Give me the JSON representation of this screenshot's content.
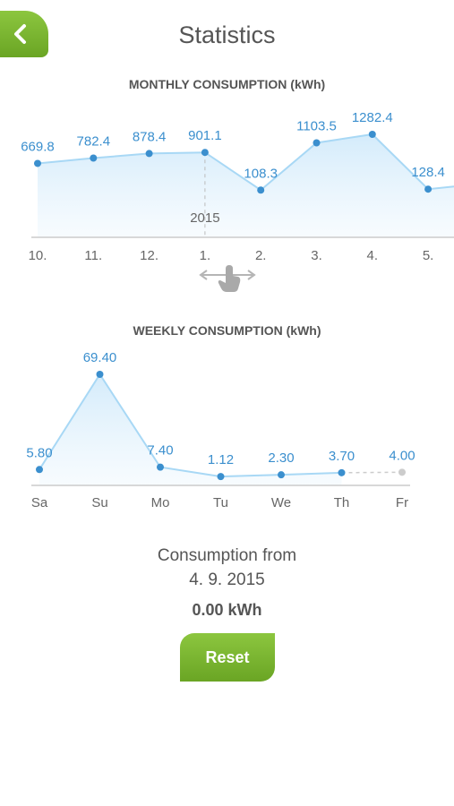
{
  "header": {
    "title": "Statistics"
  },
  "summary": {
    "since_label": "Consumption from",
    "since_date": "4. 9. 2015",
    "total": "0.00  kWh",
    "reset_label": "Reset"
  },
  "colors": {
    "accent": "#7ab730",
    "line": "#a8d8f5",
    "point": "#3b8fce"
  },
  "icons": {
    "back": "chevron-left-icon",
    "swipe": "swipe-hand-icon"
  },
  "chart_data": [
    {
      "type": "area",
      "title": "MONTHLY CONSUMPTION (kWh)",
      "categories": [
        "10.",
        "11.",
        "12.",
        "1.",
        "2.",
        "3.",
        "4.",
        "5."
      ],
      "values": [
        669.8,
        782.4,
        878.4,
        901.1,
        108.3,
        1103.5,
        1282.4,
        128.4
      ],
      "value_labels": [
        "669.8",
        "782.4",
        "878.4",
        "901.1",
        "108.3",
        "1103.5",
        "1282.4",
        "128.4"
      ],
      "year_marker": {
        "category": "1.",
        "label": "2015"
      },
      "xlabel": "",
      "ylabel": ""
    },
    {
      "type": "area",
      "title": "WEEKLY CONSUMPTION (kWh)",
      "categories": [
        "Sa",
        "Su",
        "Mo",
        "Tu",
        "We",
        "Th",
        "Fr"
      ],
      "values": [
        5.8,
        69.4,
        7.4,
        1.12,
        2.3,
        3.7,
        4.0
      ],
      "value_labels": [
        "5.80",
        "69.40",
        "7.40",
        "1.12",
        "2.30",
        "3.70",
        "4.00"
      ],
      "projected_last": true,
      "xlabel": "",
      "ylabel": ""
    }
  ]
}
